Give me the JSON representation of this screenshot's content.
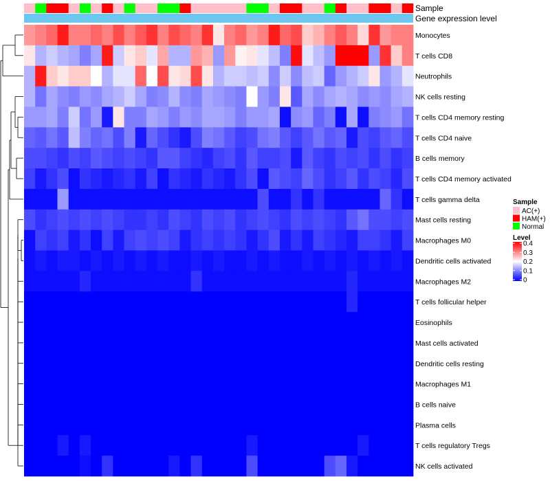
{
  "chart_data": {
    "type": "heatmap",
    "title": "",
    "annotation_labels": [
      "Sample",
      "Gene expression level"
    ],
    "sample_legend": {
      "title": "Sample",
      "groups": [
        {
          "name": "AC(+)",
          "color": "#FFC0CB"
        },
        {
          "name": "HAM(+)",
          "color": "#FF0000"
        },
        {
          "name": "Normal",
          "color": "#00FF00"
        }
      ]
    },
    "gene_expression_color": "#6CC7F0",
    "sample_groups": [
      0,
      2,
      1,
      1,
      0,
      2,
      0,
      1,
      0,
      2,
      0,
      0,
      2,
      2,
      1,
      0,
      0,
      0,
      0,
      0,
      2,
      2,
      0,
      1,
      1,
      0,
      0,
      2,
      1,
      0,
      0,
      1,
      1,
      0,
      1
    ],
    "color_scale": {
      "title": "Level",
      "ticks": [
        0.4,
        0.3,
        0.2,
        0.1,
        0
      ],
      "tick_labels": [
        "0.4",
        "0.3",
        "0.2",
        "0.1",
        "0"
      ],
      "min": 0,
      "max": 0.4,
      "colors": {
        "low": "#0000FF",
        "mid": "#FFFFFF",
        "high": "#FF0000"
      }
    },
    "rows": [
      {
        "name": "Monocytes",
        "values": [
          0.28,
          0.3,
          0.32,
          0.38,
          0.3,
          0.3,
          0.32,
          0.3,
          0.34,
          0.3,
          0.33,
          0.36,
          0.3,
          0.34,
          0.32,
          0.3,
          0.36,
          0.22,
          0.3,
          0.32,
          0.28,
          0.3,
          0.38,
          0.32,
          0.34,
          0.24,
          0.26,
          0.3,
          0.33,
          0.3,
          0.23,
          0.36,
          0.28,
          0.3,
          0.3
        ]
      },
      {
        "name": "T cells CD8",
        "values": [
          0.22,
          0.14,
          0.16,
          0.14,
          0.13,
          0.1,
          0.13,
          0.38,
          0.16,
          0.22,
          0.24,
          0.18,
          0.27,
          0.14,
          0.14,
          0.28,
          0.26,
          0.12,
          0.28,
          0.21,
          0.22,
          0.18,
          0.15,
          0.1,
          0.39,
          0.18,
          0.15,
          0.12,
          0.4,
          0.4,
          0.4,
          0.12,
          0.36,
          0.24,
          0.3
        ]
      },
      {
        "name": "Neutrophils",
        "values": [
          0.14,
          0.38,
          0.24,
          0.22,
          0.24,
          0.24,
          0.2,
          0.14,
          0.18,
          0.18,
          0.32,
          0.2,
          0.34,
          0.22,
          0.23,
          0.34,
          0.22,
          0.14,
          0.16,
          0.16,
          0.15,
          0.16,
          0.11,
          0.16,
          0.11,
          0.15,
          0.16,
          0.08,
          0.12,
          0.14,
          0.16,
          0.22,
          0.12,
          0.14,
          0.18
        ]
      },
      {
        "name": "NK cells resting",
        "values": [
          0.14,
          0.09,
          0.13,
          0.11,
          0.1,
          0.12,
          0.11,
          0.13,
          0.14,
          0.16,
          0.13,
          0.1,
          0.11,
          0.14,
          0.11,
          0.1,
          0.13,
          0.12,
          0.11,
          0.1,
          0.2,
          0.12,
          0.1,
          0.22,
          0.07,
          0.13,
          0.11,
          0.13,
          0.14,
          0.13,
          0.11,
          0.12,
          0.11,
          0.13,
          0.14
        ]
      },
      {
        "name": "T cells CD4 memory resting",
        "values": [
          0.12,
          0.12,
          0.13,
          0.1,
          0.16,
          0.09,
          0.12,
          0.02,
          0.22,
          0.1,
          0.1,
          0.13,
          0.12,
          0.1,
          0.12,
          0.11,
          0.13,
          0.13,
          0.12,
          0.1,
          0.12,
          0.12,
          0.13,
          0.01,
          0.11,
          0.12,
          0.08,
          0.1,
          0.01,
          0.13,
          0.01,
          0.1,
          0.11,
          0.12,
          0.09
        ]
      },
      {
        "name": "T cells CD4 naive",
        "values": [
          0.08,
          0.07,
          0.09,
          0.07,
          0.15,
          0.1,
          0.08,
          0.09,
          0.06,
          0.1,
          0.02,
          0.08,
          0.06,
          0.04,
          0.02,
          0.06,
          0.1,
          0.09,
          0.07,
          0.05,
          0.06,
          0.09,
          0.1,
          0.07,
          0.05,
          0.07,
          0.09,
          0.07,
          0.08,
          0.02,
          0.06,
          0.05,
          0.07,
          0.08,
          0.06
        ]
      },
      {
        "name": "B cells memory",
        "values": [
          0.06,
          0.06,
          0.05,
          0.04,
          0.06,
          0.05,
          0.07,
          0.06,
          0.05,
          0.06,
          0.05,
          0.04,
          0.07,
          0.07,
          0.05,
          0.04,
          0.03,
          0.05,
          0.06,
          0.04,
          0.07,
          0.05,
          0.05,
          0.06,
          0.02,
          0.07,
          0.05,
          0.04,
          0.06,
          0.05,
          0.06,
          0.04,
          0.06,
          0.04,
          0.05
        ]
      },
      {
        "name": "T cells CD4 memory activated",
        "values": [
          0.05,
          0.02,
          0.04,
          0.06,
          0.01,
          0.04,
          0.03,
          0.02,
          0.03,
          0.04,
          0.02,
          0.05,
          0.01,
          0.04,
          0.03,
          0.02,
          0.04,
          0.03,
          0.02,
          0.04,
          0.06,
          0.01,
          0.07,
          0.06,
          0.05,
          0.08,
          0.06,
          0.04,
          0.05,
          0.07,
          0.04,
          0.06,
          0.05,
          0.03,
          0.06
        ]
      },
      {
        "name": "T cells gamma delta",
        "values": [
          0.01,
          0.01,
          0.01,
          0.12,
          0.01,
          0.01,
          0.01,
          0.01,
          0.01,
          0.01,
          0.01,
          0.01,
          0.01,
          0.01,
          0.01,
          0.01,
          0.01,
          0.01,
          0.01,
          0.01,
          0.01,
          0.06,
          0.01,
          0.01,
          0.04,
          0.01,
          0.04,
          0.01,
          0.01,
          0.01,
          0.01,
          0.01,
          0.08,
          0.04,
          0.01
        ]
      },
      {
        "name": "Mast cells resting",
        "values": [
          0.06,
          0.04,
          0.05,
          0.06,
          0.05,
          0.06,
          0.05,
          0.06,
          0.05,
          0.04,
          0.04,
          0.05,
          0.04,
          0.06,
          0.05,
          0.04,
          0.06,
          0.05,
          0.06,
          0.04,
          0.05,
          0.06,
          0.05,
          0.04,
          0.06,
          0.05,
          0.06,
          0.05,
          0.04,
          0.07,
          0.09,
          0.06,
          0.06,
          0.05,
          0.06
        ]
      },
      {
        "name": "Macrophages M0",
        "values": [
          0.01,
          0.05,
          0.04,
          0.05,
          0.02,
          0.04,
          0.01,
          0.05,
          0.02,
          0.05,
          0.06,
          0.05,
          0.06,
          0.05,
          0.02,
          0.04,
          0.05,
          0.04,
          0.05,
          0.04,
          0.02,
          0.04,
          0.06,
          0.02,
          0.04,
          0.02,
          0.05,
          0.04,
          0.03,
          0.02,
          0.05,
          0.05,
          0.04,
          0.02,
          0.05
        ]
      },
      {
        "name": "Dendritic cells activated",
        "values": [
          0.01,
          0.02,
          0.01,
          0.02,
          0.02,
          0.01,
          0.02,
          0.01,
          0.02,
          0.01,
          0.02,
          0.01,
          0.02,
          0.01,
          0.01,
          0.02,
          0.01,
          0.02,
          0.01,
          0.01,
          0.02,
          0.01,
          0.02,
          0.01,
          0.01,
          0.02,
          0.01,
          0.02,
          0.01,
          0.02,
          0.01,
          0.02,
          0.01,
          0.02,
          0.01
        ]
      },
      {
        "name": "Macrophages M2",
        "values": [
          0.01,
          0.01,
          0.01,
          0.01,
          0.01,
          0.03,
          0.01,
          0.01,
          0.01,
          0.01,
          0.01,
          0.01,
          0.01,
          0.01,
          0.01,
          0.04,
          0.01,
          0.01,
          0.01,
          0.01,
          0.01,
          0.01,
          0.01,
          0.01,
          0.01,
          0.01,
          0.01,
          0.01,
          0.01,
          0.03,
          0.01,
          0.01,
          0.01,
          0.01,
          0.01
        ]
      },
      {
        "name": "T cells follicular helper",
        "values": [
          0,
          0,
          0,
          0,
          0,
          0,
          0,
          0,
          0,
          0,
          0,
          0,
          0,
          0,
          0,
          0,
          0,
          0,
          0,
          0,
          0,
          0,
          0,
          0,
          0,
          0,
          0,
          0,
          0,
          0.03,
          0,
          0,
          0,
          0,
          0
        ]
      },
      {
        "name": "Eosinophils",
        "values": [
          0,
          0,
          0,
          0,
          0,
          0,
          0,
          0,
          0,
          0,
          0,
          0,
          0,
          0,
          0,
          0,
          0,
          0,
          0,
          0,
          0,
          0,
          0,
          0,
          0,
          0,
          0,
          0,
          0,
          0,
          0,
          0,
          0,
          0,
          0
        ]
      },
      {
        "name": "Mast cells activated",
        "values": [
          0,
          0,
          0,
          0,
          0,
          0,
          0,
          0,
          0,
          0,
          0,
          0,
          0,
          0,
          0,
          0,
          0,
          0,
          0,
          0,
          0,
          0,
          0,
          0,
          0,
          0,
          0,
          0,
          0,
          0,
          0,
          0,
          0,
          0,
          0
        ]
      },
      {
        "name": "Dendritic cells resting",
        "values": [
          0,
          0,
          0,
          0,
          0,
          0,
          0,
          0,
          0,
          0,
          0,
          0,
          0,
          0,
          0,
          0,
          0,
          0,
          0,
          0,
          0,
          0,
          0,
          0,
          0,
          0,
          0,
          0,
          0,
          0,
          0,
          0,
          0,
          0,
          0
        ]
      },
      {
        "name": "Macrophages M1",
        "values": [
          0,
          0,
          0,
          0,
          0,
          0,
          0,
          0,
          0,
          0,
          0,
          0,
          0,
          0,
          0,
          0,
          0,
          0,
          0,
          0,
          0,
          0,
          0,
          0,
          0,
          0,
          0,
          0,
          0,
          0,
          0,
          0,
          0,
          0,
          0
        ]
      },
      {
        "name": "B cells naive",
        "values": [
          0,
          0,
          0,
          0,
          0,
          0,
          0,
          0,
          0,
          0,
          0,
          0,
          0,
          0,
          0,
          0,
          0,
          0,
          0,
          0,
          0,
          0,
          0,
          0,
          0,
          0,
          0,
          0,
          0,
          0,
          0,
          0,
          0,
          0,
          0
        ]
      },
      {
        "name": "Plasma cells",
        "values": [
          0,
          0,
          0,
          0,
          0,
          0,
          0,
          0,
          0,
          0,
          0,
          0,
          0,
          0,
          0,
          0,
          0,
          0,
          0,
          0,
          0,
          0,
          0,
          0,
          0,
          0,
          0,
          0,
          0,
          0,
          0,
          0,
          0,
          0,
          0
        ]
      },
      {
        "name": "T cells regulatory  Tregs",
        "values": [
          0,
          0,
          0,
          0.02,
          0,
          0.02,
          0,
          0,
          0,
          0,
          0,
          0,
          0,
          0,
          0,
          0,
          0,
          0,
          0,
          0,
          0.02,
          0,
          0,
          0,
          0,
          0,
          0,
          0,
          0,
          0,
          0.02,
          0,
          0,
          0,
          0
        ]
      },
      {
        "name": "NK cells activated",
        "values": [
          0,
          0,
          0,
          0,
          0,
          0.01,
          0,
          0.04,
          0,
          0,
          0,
          0,
          0,
          0.02,
          0,
          0.04,
          0,
          0,
          0,
          0,
          0.06,
          0,
          0,
          0,
          0,
          0,
          0,
          0.06,
          0.08,
          0.02,
          0,
          0,
          0,
          0,
          0
        ]
      }
    ]
  }
}
